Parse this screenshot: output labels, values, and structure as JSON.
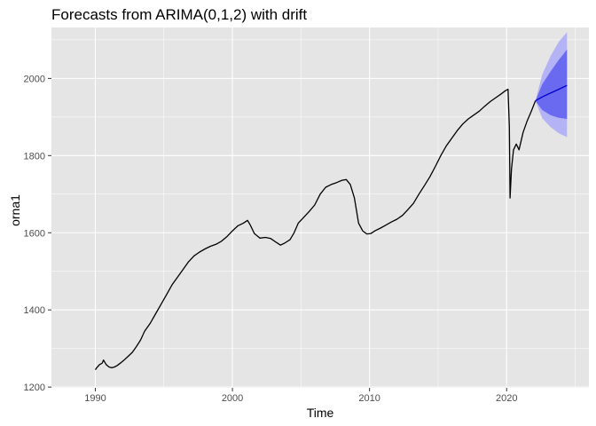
{
  "chart_data": {
    "type": "line",
    "title": "Forecasts from ARIMA(0,1,2) with drift",
    "xlabel": "Time",
    "ylabel": "orna1",
    "xlim": [
      1986.8,
      2026.0
    ],
    "ylim": [
      1198,
      2132
    ],
    "x_ticks": [
      1990,
      2000,
      2010,
      2020
    ],
    "x_tick_labels": [
      "1990",
      "2000",
      "2010",
      "2020"
    ],
    "y_ticks": [
      1200,
      1400,
      1600,
      1800,
      2000
    ],
    "y_tick_labels": [
      "1200",
      "1400",
      "1600",
      "1800",
      "2000"
    ],
    "grid": true,
    "colors": {
      "panel_bg": "#e5e5e5",
      "grid": "#ffffff",
      "history_line": "#000000",
      "forecast_line": "#0000cc",
      "band_95": "#b3b3f5",
      "band_80": "#6a6af0"
    },
    "series": [
      {
        "x": [
          1990.0,
          1990.1,
          1990.3,
          1990.5,
          1990.6,
          1990.8,
          1991.0,
          1991.2,
          1991.4,
          1991.6,
          1991.9,
          1992.1,
          1992.4,
          1992.7,
          1993.0,
          1993.3,
          1993.6,
          1994.0,
          1994.4,
          1994.8,
          1995.2,
          1995.6,
          1996.0,
          1996.4,
          1996.8,
          1997.2,
          1997.6,
          1998.0,
          1998.4,
          1998.8,
          1999.2,
          1999.6,
          2000.0,
          2000.4,
          2000.8,
          2001.1,
          2001.3,
          2001.6,
          2002.0,
          2002.4,
          2002.8,
          2003.2,
          2003.5,
          2003.8,
          2004.2,
          2004.5,
          2004.8,
          2005.2,
          2005.6,
          2006.0,
          2006.4,
          2006.8,
          2007.2,
          2007.6,
          2008.0,
          2008.3,
          2008.6,
          2008.9,
          2009.2,
          2009.5,
          2009.8,
          2010.1,
          2010.4,
          2010.8,
          2011.2,
          2011.6,
          2012.0,
          2012.4,
          2012.8,
          2013.2,
          2013.6,
          2014.0,
          2014.4,
          2014.8,
          2015.2,
          2015.6,
          2016.0,
          2016.4,
          2016.8,
          2017.2,
          2017.6,
          2018.0,
          2018.4,
          2018.8,
          2019.2,
          2019.6,
          2019.9,
          2020.1,
          2020.2,
          2020.25,
          2020.35,
          2020.5,
          2020.7,
          2020.9,
          2021.2,
          2021.5,
          2021.8,
          2022.1
        ],
        "y": [
          1245,
          1250,
          1258,
          1262,
          1270,
          1258,
          1252,
          1250,
          1252,
          1256,
          1264,
          1270,
          1280,
          1290,
          1305,
          1322,
          1345,
          1365,
          1390,
          1415,
          1440,
          1465,
          1485,
          1505,
          1525,
          1540,
          1550,
          1558,
          1565,
          1570,
          1578,
          1590,
          1605,
          1618,
          1625,
          1632,
          1620,
          1598,
          1586,
          1588,
          1585,
          1575,
          1568,
          1573,
          1582,
          1600,
          1625,
          1640,
          1655,
          1672,
          1700,
          1718,
          1725,
          1730,
          1736,
          1738,
          1725,
          1690,
          1625,
          1605,
          1597,
          1598,
          1605,
          1612,
          1620,
          1628,
          1635,
          1645,
          1660,
          1676,
          1700,
          1722,
          1745,
          1772,
          1800,
          1825,
          1845,
          1865,
          1882,
          1895,
          1905,
          1915,
          1928,
          1940,
          1950,
          1960,
          1968,
          1972,
          1875,
          1690,
          1765,
          1815,
          1830,
          1815,
          1860,
          1890,
          1915,
          1942
        ]
      },
      {
        "x": [
          2022.1,
          2022.6,
          2023.2,
          2023.8,
          2024.4
        ],
        "y": [
          1942,
          1952,
          1962,
          1972,
          1982
        ],
        "lo80": [
          1942,
          1918,
          1905,
          1898,
          1895
        ],
        "hi80": [
          1942,
          1985,
          2018,
          2048,
          2075
        ],
        "lo95": [
          1942,
          1897,
          1874,
          1858,
          1848
        ],
        "hi95": [
          1942,
          2010,
          2058,
          2095,
          2120
        ]
      }
    ]
  }
}
